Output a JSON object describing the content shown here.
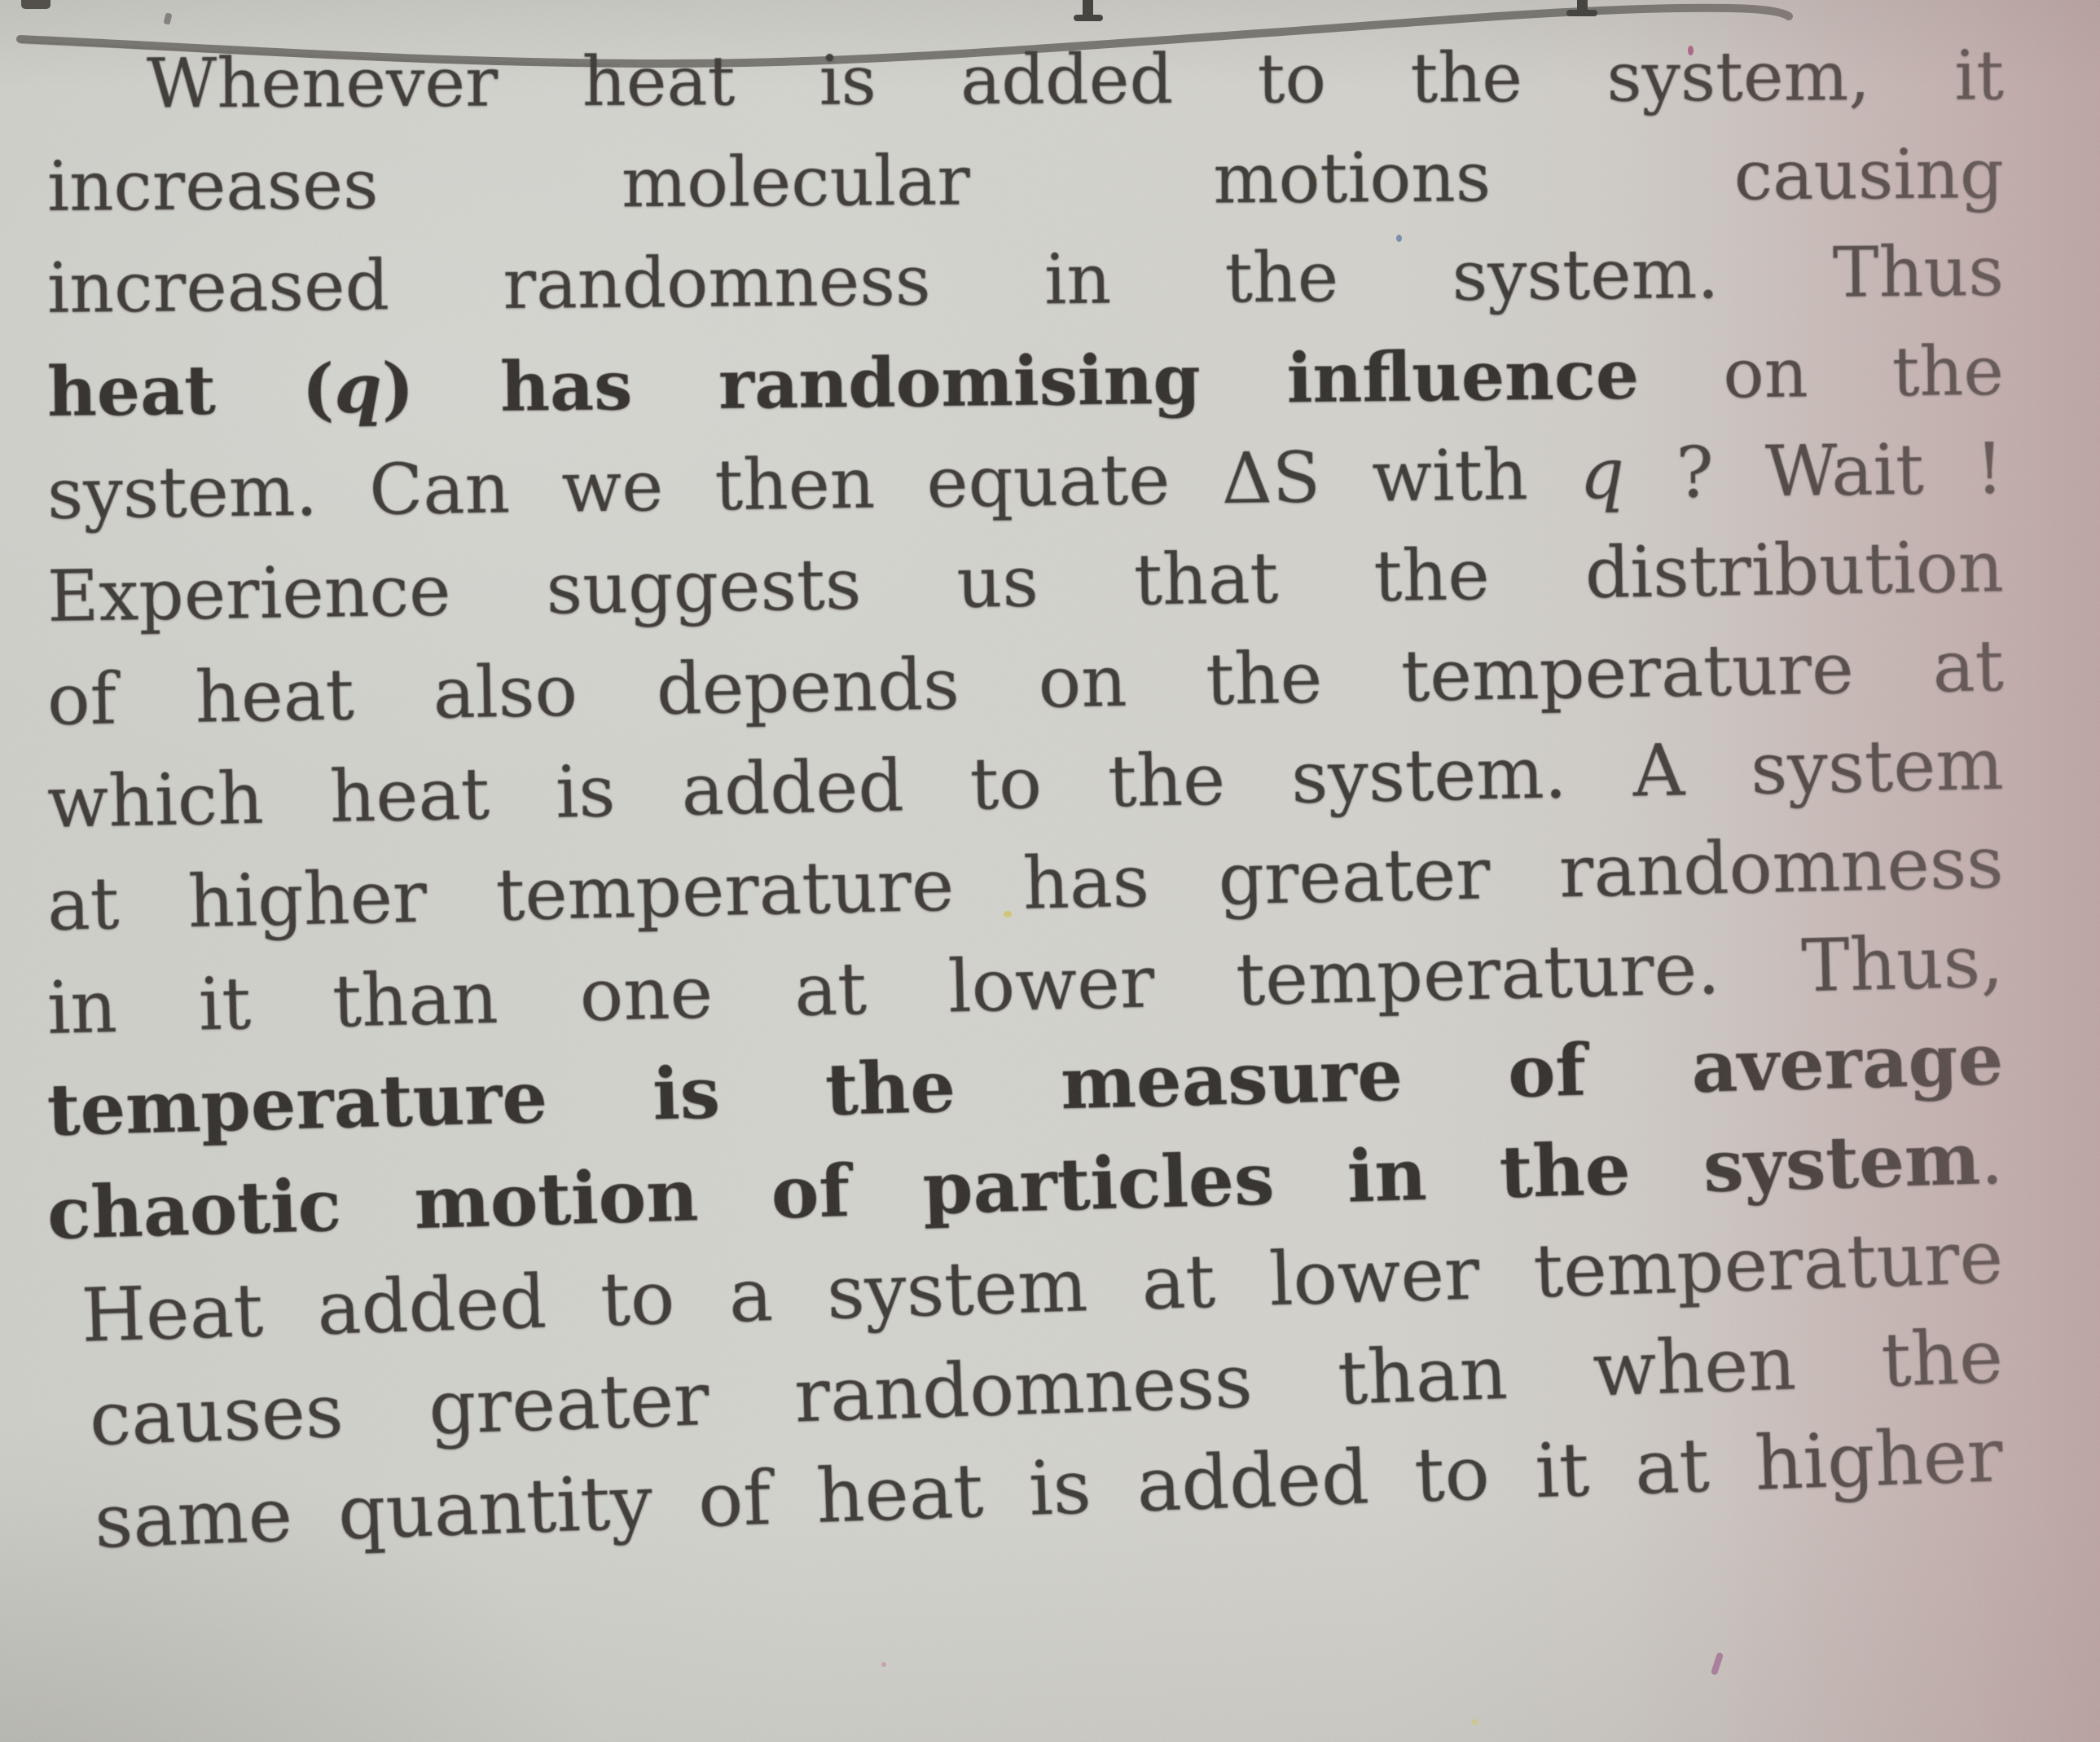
{
  "page": {
    "description": "photographed textbook paragraph",
    "lines": [
      {
        "indent": true,
        "segments": [
          {
            "t": "Whenever heat is added to the system, it",
            "s": "n"
          }
        ]
      },
      {
        "segments": [
          {
            "t": "increases molecular motions causing",
            "s": "n"
          }
        ]
      },
      {
        "segments": [
          {
            "t": "increased randomness in the system. Thus",
            "s": "n"
          }
        ]
      },
      {
        "segments": [
          {
            "t": "heat (",
            "s": "b"
          },
          {
            "t": "q",
            "s": "bi"
          },
          {
            "t": ") has randomising influence",
            "s": "b"
          },
          {
            "t": " on the",
            "s": "n"
          }
        ]
      },
      {
        "segments": [
          {
            "t": "system. Can we then equate ΔS with ",
            "s": "n"
          },
          {
            "t": "q",
            "s": "i"
          },
          {
            "t": " ? Wait !",
            "s": "n"
          }
        ]
      },
      {
        "segments": [
          {
            "t": "Experience suggests us that the distribution",
            "s": "n"
          }
        ]
      },
      {
        "segments": [
          {
            "t": "of heat also depends on the temperature at",
            "s": "n"
          }
        ]
      },
      {
        "segments": [
          {
            "t": "which heat is added to the system. A system",
            "s": "n"
          }
        ]
      },
      {
        "segments": [
          {
            "t": "at higher temperature has greater randomness",
            "s": "n"
          }
        ]
      },
      {
        "segments": [
          {
            "t": "in it than one at lower temperature. Thus,",
            "s": "n"
          }
        ]
      },
      {
        "segments": [
          {
            "t": "temperature is the measure of average",
            "s": "b"
          }
        ]
      },
      {
        "segments": [
          {
            "t": "chaotic motion of particles in the system",
            "s": "b"
          },
          {
            "t": ".",
            "s": "n"
          }
        ]
      },
      {
        "segments": [
          {
            "t": "Heat added to a system at lower temperature",
            "s": "n"
          }
        ]
      },
      {
        "segments": [
          {
            "t": "causes greater randomness than when the",
            "s": "n"
          }
        ]
      },
      {
        "segments": [
          {
            "t": "same quantity of heat is added to it at higher",
            "s": "n"
          }
        ]
      }
    ]
  },
  "colors": {
    "paper": "#d3d2cc",
    "paper_right_shadow": "#c3b2b0",
    "ink": "#383431",
    "ink_bold": "#2e2a27",
    "pen_underline": "#67645f"
  },
  "decorations": {
    "top_underline": "hand-drawn pen line across top of page",
    "cropped_glyphs": "bottoms of letters from previous line cut off at top edge"
  }
}
